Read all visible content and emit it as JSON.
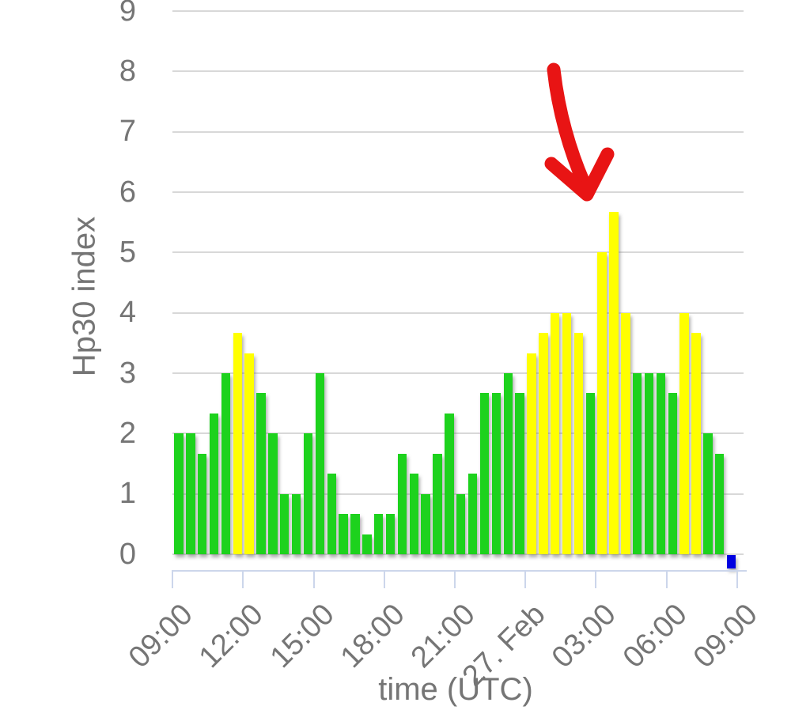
{
  "chart_data": {
    "type": "bar",
    "title": "",
    "ylabel": "Hp30 index",
    "xlabel": "time (UTC)",
    "ylim": [
      0,
      9
    ],
    "grid": true,
    "legend": false,
    "yticks": [
      0,
      1,
      2,
      3,
      4,
      5,
      6,
      7,
      8,
      9
    ],
    "xtick_labels": [
      "09:00",
      "12:00",
      "15:00",
      "18:00",
      "21:00",
      "27. Feb",
      "03:00",
      "06:00",
      "09:00"
    ],
    "date_note": "series starts 26 Feb 09:00 UTC; 27. Feb begins at index 30",
    "times_utc": [
      "09:00",
      "09:30",
      "10:00",
      "10:30",
      "11:00",
      "11:30",
      "12:00",
      "12:30",
      "13:00",
      "13:30",
      "14:00",
      "14:30",
      "15:00",
      "15:30",
      "16:00",
      "16:30",
      "17:00",
      "17:30",
      "18:00",
      "18:30",
      "19:00",
      "19:30",
      "20:00",
      "20:30",
      "21:00",
      "21:30",
      "22:00",
      "22:30",
      "23:00",
      "23:30",
      "00:00",
      "00:30",
      "01:00",
      "01:30",
      "02:00",
      "02:30",
      "03:00",
      "03:30",
      "04:00",
      "04:30",
      "05:00",
      "05:30",
      "06:00",
      "06:30",
      "07:00",
      "07:30",
      "08:00",
      "08:30"
    ],
    "values": [
      2,
      2,
      1.67,
      2.33,
      3,
      3.67,
      3.33,
      2.67,
      2,
      1,
      1,
      2,
      3,
      1.33,
      0.67,
      0.67,
      0.33,
      0.67,
      0.67,
      1.67,
      1.33,
      1,
      1.67,
      2.33,
      1,
      1.33,
      2.67,
      2.67,
      3,
      2.67,
      3.33,
      3.67,
      4,
      4,
      3.67,
      2.67,
      5,
      5.67,
      4,
      3,
      3,
      3,
      2.67,
      4,
      3.67,
      2,
      1.67,
      0
    ],
    "bar_colors": [
      "green",
      "green",
      "green",
      "green",
      "green",
      "yellow",
      "yellow",
      "green",
      "green",
      "green",
      "green",
      "green",
      "green",
      "green",
      "green",
      "green",
      "green",
      "green",
      "green",
      "green",
      "green",
      "green",
      "green",
      "green",
      "green",
      "green",
      "green",
      "green",
      "green",
      "green",
      "yellow",
      "yellow",
      "yellow",
      "yellow",
      "yellow",
      "green",
      "yellow",
      "yellow",
      "yellow",
      "green",
      "green",
      "green",
      "green",
      "yellow",
      "yellow",
      "green",
      "green",
      "blue"
    ],
    "annotations": [
      {
        "type": "arrow",
        "color": "#e81414",
        "points_at": "peak bar 5.67 at 03:30 UTC"
      }
    ],
    "palette": {
      "green": "#1dd21d",
      "yellow": "#ffff00",
      "blue": "#0000e0",
      "arrow_red": "#e81414",
      "gridline": "#d8d8d8",
      "axis_line": "#ccd6eb",
      "label_gray": "#757575",
      "background": "#ffffff"
    }
  }
}
